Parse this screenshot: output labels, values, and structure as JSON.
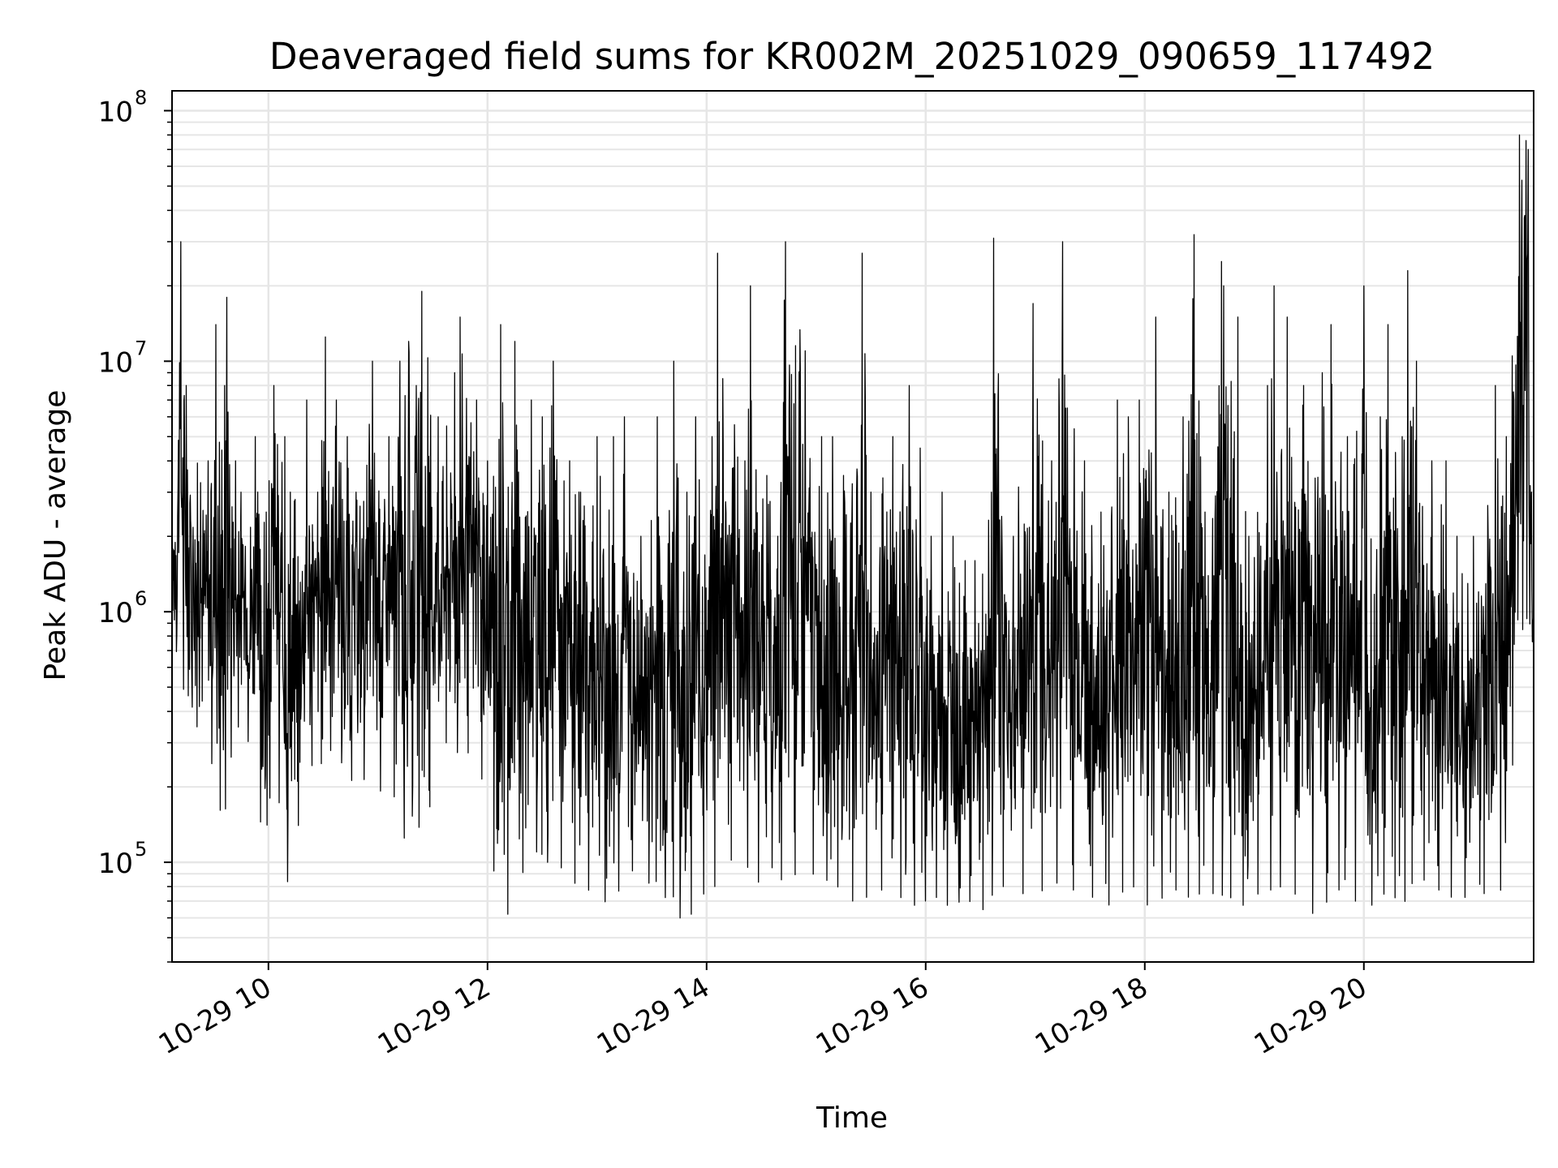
{
  "chart_data": {
    "type": "line",
    "title": "Deaveraged field sums for KR002M_20251029_090659_117492",
    "xlabel": "Time",
    "ylabel": "Peak ADU - average",
    "yscale": "log",
    "ylim": [
      40000,
      120000000
    ],
    "xlim_hours": [
      9.12,
      21.55
    ],
    "grid": true,
    "line_color": "#000000",
    "grid_color": "#e6e6e6",
    "x_ticks": [
      {
        "hour": 10,
        "label": "10-29 10"
      },
      {
        "hour": 12,
        "label": "10-29 12"
      },
      {
        "hour": 14,
        "label": "10-29 14"
      },
      {
        "hour": 16,
        "label": "10-29 16"
      },
      {
        "hour": 18,
        "label": "10-29 18"
      },
      {
        "hour": 20,
        "label": "10-29 20"
      }
    ],
    "y_ticks": [
      {
        "value": 100000,
        "base": "10",
        "exp": "5"
      },
      {
        "value": 1000000,
        "base": "10",
        "exp": "6"
      },
      {
        "value": 10000000,
        "base": "10",
        "exp": "7"
      },
      {
        "value": 100000000,
        "base": "10",
        "exp": "8"
      }
    ],
    "series": [
      {
        "name": "Peak ADU - average",
        "points_per_spike": 4,
        "x_hours": [
          9.12,
          9.2,
          9.25,
          9.45,
          9.52,
          9.6,
          9.62,
          9.7,
          9.75,
          9.88,
          9.98,
          10.05,
          10.15,
          10.2,
          10.35,
          10.45,
          10.52,
          10.62,
          10.72,
          10.8,
          10.95,
          11.1,
          11.2,
          11.28,
          11.35,
          11.4,
          11.55,
          11.7,
          11.75,
          11.9,
          12.0,
          12.12,
          12.25,
          12.4,
          12.5,
          12.6,
          12.75,
          12.85,
          13.0,
          13.15,
          13.25,
          13.4,
          13.55,
          13.7,
          13.82,
          13.9,
          14.05,
          14.1,
          14.35,
          14.4,
          14.55,
          14.65,
          14.72,
          14.9,
          15.05,
          15.15,
          15.25,
          15.42,
          15.5,
          15.7,
          15.85,
          15.95,
          16.05,
          16.15,
          16.25,
          16.36,
          16.45,
          16.6,
          16.62,
          16.8,
          16.98,
          17.15,
          17.25,
          17.45,
          17.6,
          17.75,
          17.85,
          17.95,
          18.1,
          18.22,
          18.35,
          18.45,
          18.55,
          18.7,
          18.72,
          18.85,
          18.95,
          19.12,
          19.18,
          19.3,
          19.45,
          19.62,
          19.7,
          19.85,
          20.0,
          20.15,
          20.22,
          20.35,
          20.4,
          20.48,
          20.62,
          20.75,
          20.85,
          21.0,
          21.2,
          21.3,
          21.42,
          21.48,
          21.5,
          21.53,
          21.55
        ],
        "high": [
          1800000,
          30000000,
          8000000,
          4000000,
          14000000,
          8000000,
          18000000,
          4000000,
          3000000,
          5000000,
          2500000,
          8000000,
          5000000,
          3000000,
          7000000,
          3000000,
          12500000,
          7000000,
          5000000,
          3000000,
          10000000,
          5000000,
          10000000,
          12000000,
          8000000,
          19000000,
          6000000,
          9000000,
          15000000,
          7000000,
          4000000,
          14000000,
          12000000,
          7000000,
          6000000,
          10000000,
          4000000,
          3000000,
          5000000,
          5000000,
          6000000,
          2000000,
          6000000,
          10000000,
          3000000,
          6000000,
          5000000,
          27000000,
          4000000,
          20000000,
          3500000,
          2000000,
          30000000,
          11000000,
          5000000,
          5000000,
          3500000,
          27000000,
          3000000,
          5000000,
          8000000,
          4500000,
          2000000,
          3000000,
          2000000,
          1600000,
          1600000,
          3000000,
          31000000,
          2000000,
          17000000,
          4000000,
          30000000,
          4000000,
          2500000,
          7000000,
          6000000,
          7000000,
          15000000,
          3000000,
          6000000,
          32000000,
          2500000,
          25000000,
          20000000,
          15000000,
          2000000,
          8000000,
          20000000,
          15000000,
          8000000,
          9000000,
          14000000,
          5000000,
          20000000,
          6000000,
          14000000,
          5000000,
          23000000,
          10000000,
          4000000,
          4000000,
          2000000,
          2000000,
          8000000,
          5000000,
          80000000,
          76000000,
          70000000,
          3000000,
          1000000
        ],
        "low": [
          800000,
          600000,
          400000,
          300000,
          200000,
          130000,
          230000,
          300000,
          400000,
          230000,
          88000,
          400000,
          70000,
          100000,
          200000,
          300000,
          200000,
          400000,
          150000,
          300000,
          150000,
          250000,
          130000,
          120000,
          200000,
          95000,
          300000,
          300000,
          250000,
          300000,
          150000,
          55000,
          70000,
          120000,
          100000,
          100000,
          90000,
          75000,
          80000,
          60000,
          100000,
          85000,
          80000,
          65000,
          55000,
          70000,
          80000,
          80000,
          130000,
          70000,
          100000,
          90000,
          80000,
          100000,
          80000,
          90000,
          70000,
          70000,
          75000,
          80000,
          65000,
          70000,
          70000,
          75000,
          60000,
          80000,
          60000,
          70000,
          80000,
          80000,
          70000,
          85000,
          80000,
          75000,
          70000,
          65000,
          90000,
          70000,
          65000,
          80000,
          75000,
          70000,
          80000,
          70000,
          80000,
          65000,
          70000,
          80000,
          75000,
          85000,
          65000,
          60000,
          80000,
          75000,
          65000,
          70000,
          80000,
          65000,
          75000,
          90000,
          80000,
          75000,
          70000,
          75000,
          75000,
          80000,
          800000,
          900000,
          1000000,
          800000,
          700000
        ]
      }
    ]
  }
}
